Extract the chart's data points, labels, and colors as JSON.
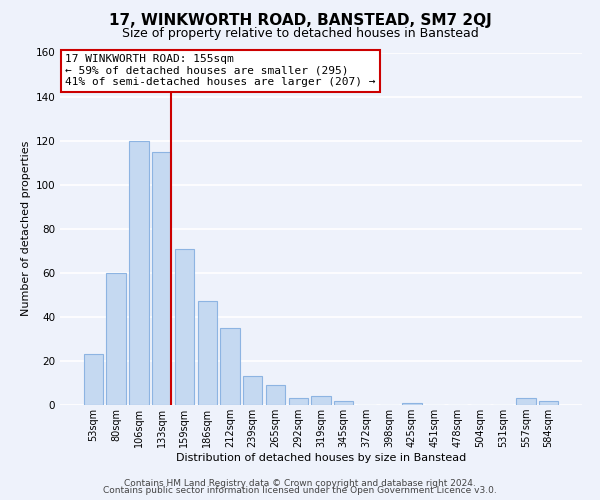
{
  "title": "17, WINKWORTH ROAD, BANSTEAD, SM7 2QJ",
  "subtitle": "Size of property relative to detached houses in Banstead",
  "xlabel": "Distribution of detached houses by size in Banstead",
  "ylabel": "Number of detached properties",
  "bar_labels": [
    "53sqm",
    "80sqm",
    "106sqm",
    "133sqm",
    "159sqm",
    "186sqm",
    "212sqm",
    "239sqm",
    "265sqm",
    "292sqm",
    "319sqm",
    "345sqm",
    "372sqm",
    "398sqm",
    "425sqm",
    "451sqm",
    "478sqm",
    "504sqm",
    "531sqm",
    "557sqm",
    "584sqm"
  ],
  "bar_values": [
    23,
    60,
    120,
    115,
    71,
    47,
    35,
    13,
    9,
    3,
    4,
    2,
    0,
    0,
    1,
    0,
    0,
    0,
    0,
    3,
    2
  ],
  "bar_color": "#c5d9f1",
  "bar_edge_color": "#8db4e2",
  "highlight_line_color": "#cc0000",
  "annotation_line1": "17 WINKWORTH ROAD: 155sqm",
  "annotation_line2": "← 59% of detached houses are smaller (295)",
  "annotation_line3": "41% of semi-detached houses are larger (207) →",
  "annotation_box_facecolor": "white",
  "annotation_box_edgecolor": "#cc0000",
  "ylim": [
    0,
    160
  ],
  "yticks": [
    0,
    20,
    40,
    60,
    80,
    100,
    120,
    140,
    160
  ],
  "footer_line1": "Contains HM Land Registry data © Crown copyright and database right 2024.",
  "footer_line2": "Contains public sector information licensed under the Open Government Licence v3.0.",
  "background_color": "#eef2fb",
  "grid_color": "white",
  "title_fontsize": 11,
  "subtitle_fontsize": 9,
  "annotation_fontsize": 8,
  "footer_fontsize": 6.5,
  "ylabel_fontsize": 8,
  "xlabel_fontsize": 8
}
